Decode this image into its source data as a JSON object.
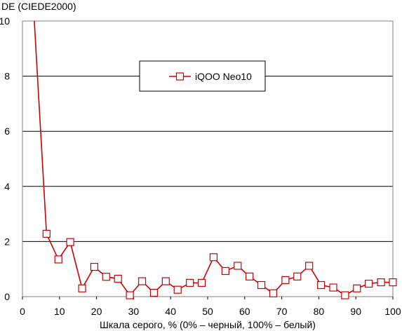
{
  "chart_data": {
    "type": "line",
    "title": "",
    "ylabel": "DE (CIEDE2000)",
    "xlabel": "Шкала серого, % (0% – черный, 100% – белый)",
    "xlim": [
      0,
      100
    ],
    "ylim": [
      0,
      10
    ],
    "xticks": [
      0,
      10,
      20,
      30,
      40,
      50,
      60,
      70,
      80,
      90,
      100
    ],
    "yticks": [
      0,
      2,
      4,
      6,
      8,
      10
    ],
    "grid": "horizontal",
    "legend_position": "top-center",
    "series": [
      {
        "name": "iQOO Neo10",
        "color": "#cc0000",
        "marker": "square",
        "leading_line": {
          "x": [
            3.2,
            6.5
          ],
          "y": [
            10.0,
            2.28
          ]
        },
        "x": [
          6.5,
          9.7,
          12.9,
          16.1,
          19.4,
          22.6,
          25.8,
          29.0,
          32.3,
          35.5,
          38.7,
          41.9,
          45.2,
          48.4,
          51.6,
          54.8,
          58.1,
          61.3,
          64.5,
          67.7,
          71.0,
          74.2,
          77.4,
          80.6,
          83.9,
          87.1,
          90.3,
          93.5,
          96.8,
          100.0
        ],
        "y": [
          2.28,
          1.35,
          1.98,
          0.3,
          1.08,
          0.72,
          0.65,
          0.05,
          0.56,
          0.14,
          0.56,
          0.25,
          0.5,
          0.5,
          1.43,
          0.93,
          1.12,
          0.73,
          0.42,
          0.12,
          0.6,
          0.73,
          1.12,
          0.42,
          0.33,
          0.05,
          0.3,
          0.47,
          0.52,
          0.52
        ]
      }
    ]
  }
}
